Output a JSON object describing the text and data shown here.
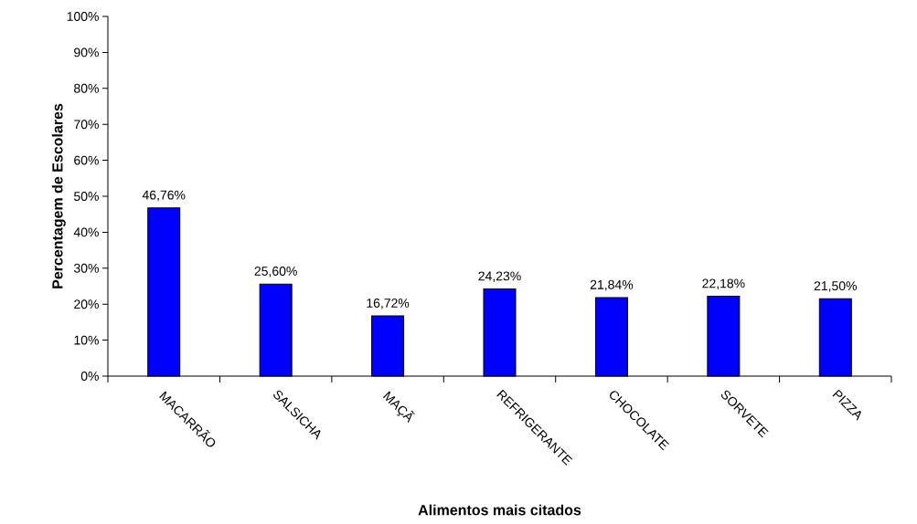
{
  "chart_data": {
    "type": "bar",
    "xlabel": "Alimentos mais citados",
    "ylabel": "Percentagem de Escolares",
    "categories": [
      "MACARRÃO",
      "SALSICHA",
      "MAÇÃ",
      "REFRIGERANTE",
      "CHOCOLATE",
      "SORVETE",
      "PIZZA"
    ],
    "values": [
      46.76,
      25.6,
      16.72,
      24.23,
      21.84,
      22.18,
      21.5
    ],
    "value_labels": [
      "46,76%",
      "25,60%",
      "16,72%",
      "24,23%",
      "21,84%",
      "22,18%",
      "21,50%"
    ],
    "color": "#0000ff",
    "ylim": [
      0,
      100
    ],
    "yticks": [
      {
        "value": 0,
        "label": "0%"
      },
      {
        "value": 10,
        "label": "10%"
      },
      {
        "value": 20,
        "label": "20%"
      },
      {
        "value": 30,
        "label": "30%"
      },
      {
        "value": 40,
        "label": "40%"
      },
      {
        "value": 50,
        "label": "50%"
      },
      {
        "value": 60,
        "label": "60%"
      },
      {
        "value": 70,
        "label": "70%"
      },
      {
        "value": 80,
        "label": "80%"
      },
      {
        "value": 90,
        "label": "90%"
      },
      {
        "value": 100,
        "label": "100%"
      }
    ],
    "grid": false
  }
}
